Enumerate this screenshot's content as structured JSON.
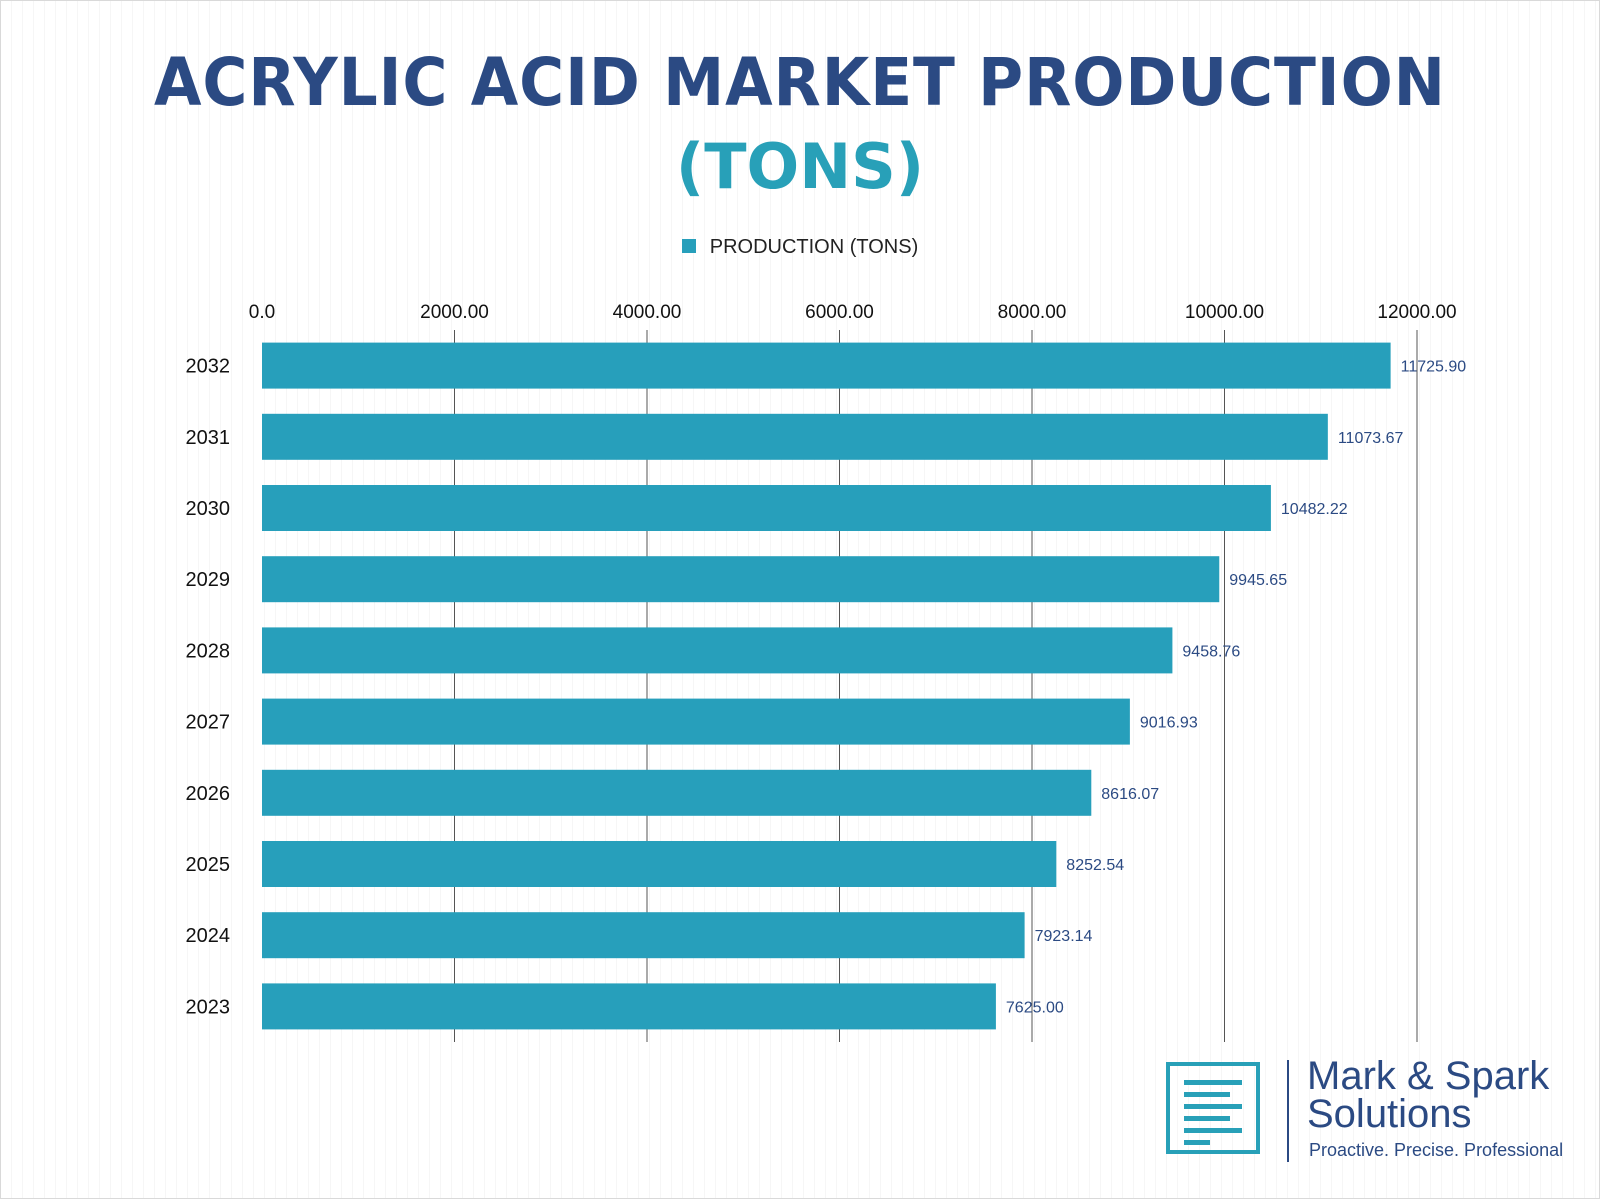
{
  "chart_data": {
    "type": "bar",
    "orientation": "horizontal",
    "title": "ACRYLIC ACID MARKET PRODUCTION",
    "subtitle": "(TONS)",
    "categories": [
      "2032",
      "2031",
      "2030",
      "2029",
      "2028",
      "2027",
      "2026",
      "2025",
      "2024",
      "2023"
    ],
    "series": [
      {
        "name": "PRODUCTION (TONS)",
        "values": [
          11725.9,
          11073.67,
          10482.22,
          9945.65,
          9458.76,
          9016.93,
          8616.07,
          8252.54,
          7923.14,
          7625.0
        ],
        "value_labels": [
          "11725.90",
          "11073.67",
          "10482.22",
          "9945.65",
          "9458.76",
          "9016.93",
          "8616.07",
          "8252.54",
          "7923.14",
          "7625.00"
        ]
      }
    ],
    "xlim": [
      0,
      12000
    ],
    "x_ticks": [
      0,
      2000,
      4000,
      6000,
      8000,
      10000,
      12000
    ],
    "x_tick_labels": [
      "0.0",
      "2000.00",
      "4000.00",
      "6000.00",
      "8000.00",
      "10000.00",
      "12000.00"
    ],
    "x_axis_position": "top",
    "grid": true,
    "legend": "top-center",
    "colors": {
      "bar": "#279fbb",
      "title": "#2b4a83",
      "subtitle": "#28a0b8",
      "value_label": "#2b4a83",
      "gridline": "#555555"
    }
  },
  "logo": {
    "line1": "Mark & Spark",
    "line2": "Solutions",
    "tagline": "Proactive. Precise. Professional",
    "icon": "document-lines-icon"
  }
}
